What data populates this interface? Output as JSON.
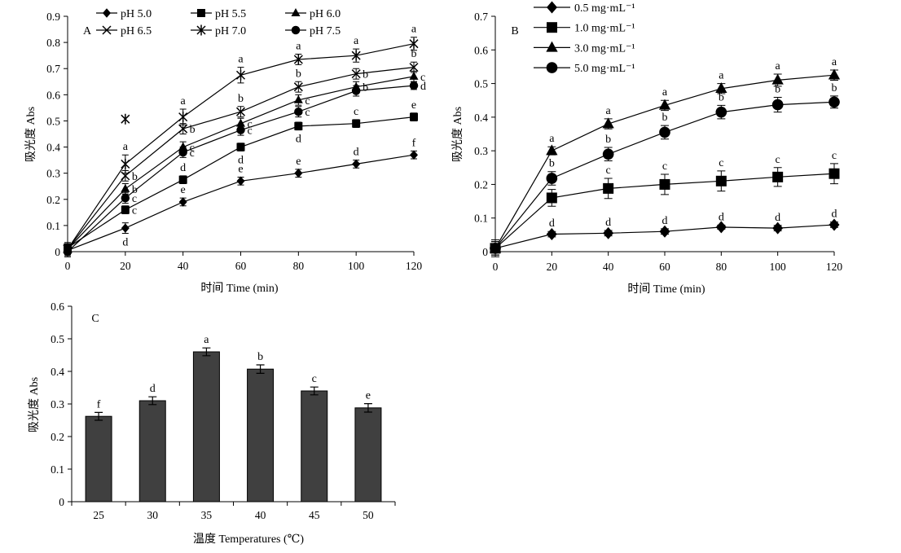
{
  "chart_data": [
    {
      "panel": "A",
      "type": "line",
      "x": [
        0,
        20,
        40,
        60,
        80,
        100,
        120
      ],
      "xlim": [
        0,
        120
      ],
      "ylim": [
        0,
        0.9
      ],
      "xticks": [
        "0",
        "20",
        "40",
        "60",
        "80",
        "100",
        "120"
      ],
      "yticks": [
        "0",
        "0.1",
        "0.2",
        "0.3",
        "0.4",
        "0.5",
        "0.6",
        "0.7",
        "0.8",
        "0.9"
      ],
      "xlabel": "时间 Time (min)",
      "ylabel": "吸光度 Abs",
      "legend": "top",
      "grid": false,
      "series": [
        {
          "name": "pH 5.0",
          "marker": "diamond",
          "values": [
            0.005,
            0.09,
            0.19,
            0.27,
            0.3,
            0.335,
            0.37
          ],
          "err": [
            0.02,
            0.02,
            0.015,
            0.015,
            0.015,
            0.015,
            0.015
          ],
          "letters": [
            "",
            "d",
            "e",
            "e",
            "e",
            "d",
            "f"
          ]
        },
        {
          "name": "pH 5.5",
          "marker": "square",
          "values": [
            0.015,
            0.16,
            0.275,
            0.4,
            0.48,
            0.49,
            0.515
          ],
          "err": [
            0.02,
            0.015,
            0.015,
            0.015,
            0.015,
            0.015,
            0.015
          ],
          "letters": [
            "",
            "c",
            "d",
            "d",
            "d",
            "c",
            "e"
          ]
        },
        {
          "name": "pH 6.0",
          "marker": "triangle",
          "values": [
            0.01,
            0.24,
            0.4,
            0.49,
            0.58,
            0.63,
            0.67
          ],
          "err": [
            0.02,
            0.02,
            0.02,
            0.02,
            0.02,
            0.02,
            0.02
          ],
          "letters": [
            "",
            "b",
            "c",
            "c",
            "c",
            "b",
            "c"
          ]
        },
        {
          "name": "pH 6.5",
          "marker": "xcross",
          "values": [
            0.01,
            0.29,
            0.47,
            0.535,
            0.63,
            0.68,
            0.705
          ],
          "err": [
            0.02,
            0.02,
            0.02,
            0.02,
            0.02,
            0.02,
            0.02
          ],
          "letters": [
            "",
            "b",
            "b",
            "b",
            "b",
            "b",
            "b"
          ]
        },
        {
          "name": "pH 7.0",
          "marker": "asterisk",
          "values": [
            0.01,
            0.335,
            0.515,
            0.675,
            0.735,
            0.75,
            0.795
          ],
          "err": [
            0.02,
            0.035,
            0.03,
            0.03,
            0.02,
            0.025,
            0.025
          ],
          "letters": [
            "",
            "a",
            "a",
            "a",
            "a",
            "a",
            "a"
          ],
          "extra_points": [
            {
              "x": 20,
              "y": 0.507
            }
          ]
        },
        {
          "name": "pH 7.5",
          "marker": "circle",
          "values": [
            0.0,
            0.205,
            0.38,
            0.465,
            0.535,
            0.615,
            0.635
          ],
          "err": [
            0.02,
            0.02,
            0.02,
            0.02,
            0.02,
            0.02,
            0.015
          ],
          "letters": [
            "",
            "c",
            "c",
            "c",
            "c",
            "",
            "d"
          ]
        }
      ]
    },
    {
      "panel": "B",
      "type": "line",
      "x": [
        0,
        20,
        40,
        60,
        80,
        100,
        120
      ],
      "xlim": [
        0,
        120
      ],
      "ylim": [
        0,
        0.7
      ],
      "xticks": [
        "0",
        "20",
        "40",
        "60",
        "80",
        "100",
        "120"
      ],
      "yticks": [
        "0",
        "0.1",
        "0.2",
        "0.3",
        "0.4",
        "0.5",
        "0.6",
        "0.7"
      ],
      "xlabel": "时间 Time (min)",
      "ylabel": "吸光度 Abs",
      "legend": "top-left",
      "grid": false,
      "series": [
        {
          "name": "0.5 mg·mL⁻¹",
          "marker": "diamond",
          "values": [
            0.01,
            0.052,
            0.055,
            0.06,
            0.073,
            0.07,
            0.08
          ],
          "err": [
            0.025,
            0.008,
            0.008,
            0.008,
            0.006,
            0.008,
            0.008
          ],
          "letters": [
            "",
            "d",
            "d",
            "d",
            "d",
            "d",
            "d"
          ]
        },
        {
          "name": "1.0 mg·mL⁻¹",
          "marker": "square",
          "values": [
            0.01,
            0.16,
            0.188,
            0.2,
            0.21,
            0.222,
            0.232
          ],
          "err": [
            0.02,
            0.025,
            0.03,
            0.03,
            0.03,
            0.028,
            0.03
          ],
          "letters": [
            "",
            "",
            "c",
            "c",
            "c",
            "c",
            "c"
          ]
        },
        {
          "name": "3.0 mg·mL⁻¹",
          "marker": "triangle",
          "values": [
            0.01,
            0.3,
            0.38,
            0.435,
            0.485,
            0.51,
            0.525
          ],
          "err": [
            0.02,
            0.012,
            0.015,
            0.015,
            0.015,
            0.018,
            0.015
          ],
          "letters": [
            "",
            "a",
            "a",
            "a",
            "a",
            "a",
            "a"
          ]
        },
        {
          "name": "5.0 mg·mL⁻¹",
          "marker": "circle",
          "values": [
            0.01,
            0.218,
            0.29,
            0.355,
            0.415,
            0.437,
            0.445
          ],
          "err": [
            0.02,
            0.02,
            0.02,
            0.02,
            0.02,
            0.022,
            0.018
          ],
          "letters": [
            "",
            "b",
            "b",
            "b",
            "b",
            "b",
            "b"
          ]
        }
      ]
    },
    {
      "panel": "C",
      "type": "bar",
      "categories": [
        "25",
        "30",
        "35",
        "40",
        "45",
        "50"
      ],
      "values": [
        0.262,
        0.31,
        0.46,
        0.407,
        0.34,
        0.288
      ],
      "err": [
        0.012,
        0.012,
        0.012,
        0.013,
        0.012,
        0.013
      ],
      "letters": [
        "f",
        "d",
        "a",
        "b",
        "c",
        "e"
      ],
      "ylim": [
        0,
        0.6
      ],
      "yticks": [
        "0",
        "0.1",
        "0.2",
        "0.3",
        "0.4",
        "0.5",
        "0.6"
      ],
      "xlabel": "温度 Temperatures (℃)",
      "ylabel": "吸光度 Abs",
      "bar_color": "#404040",
      "grid": false
    }
  ]
}
